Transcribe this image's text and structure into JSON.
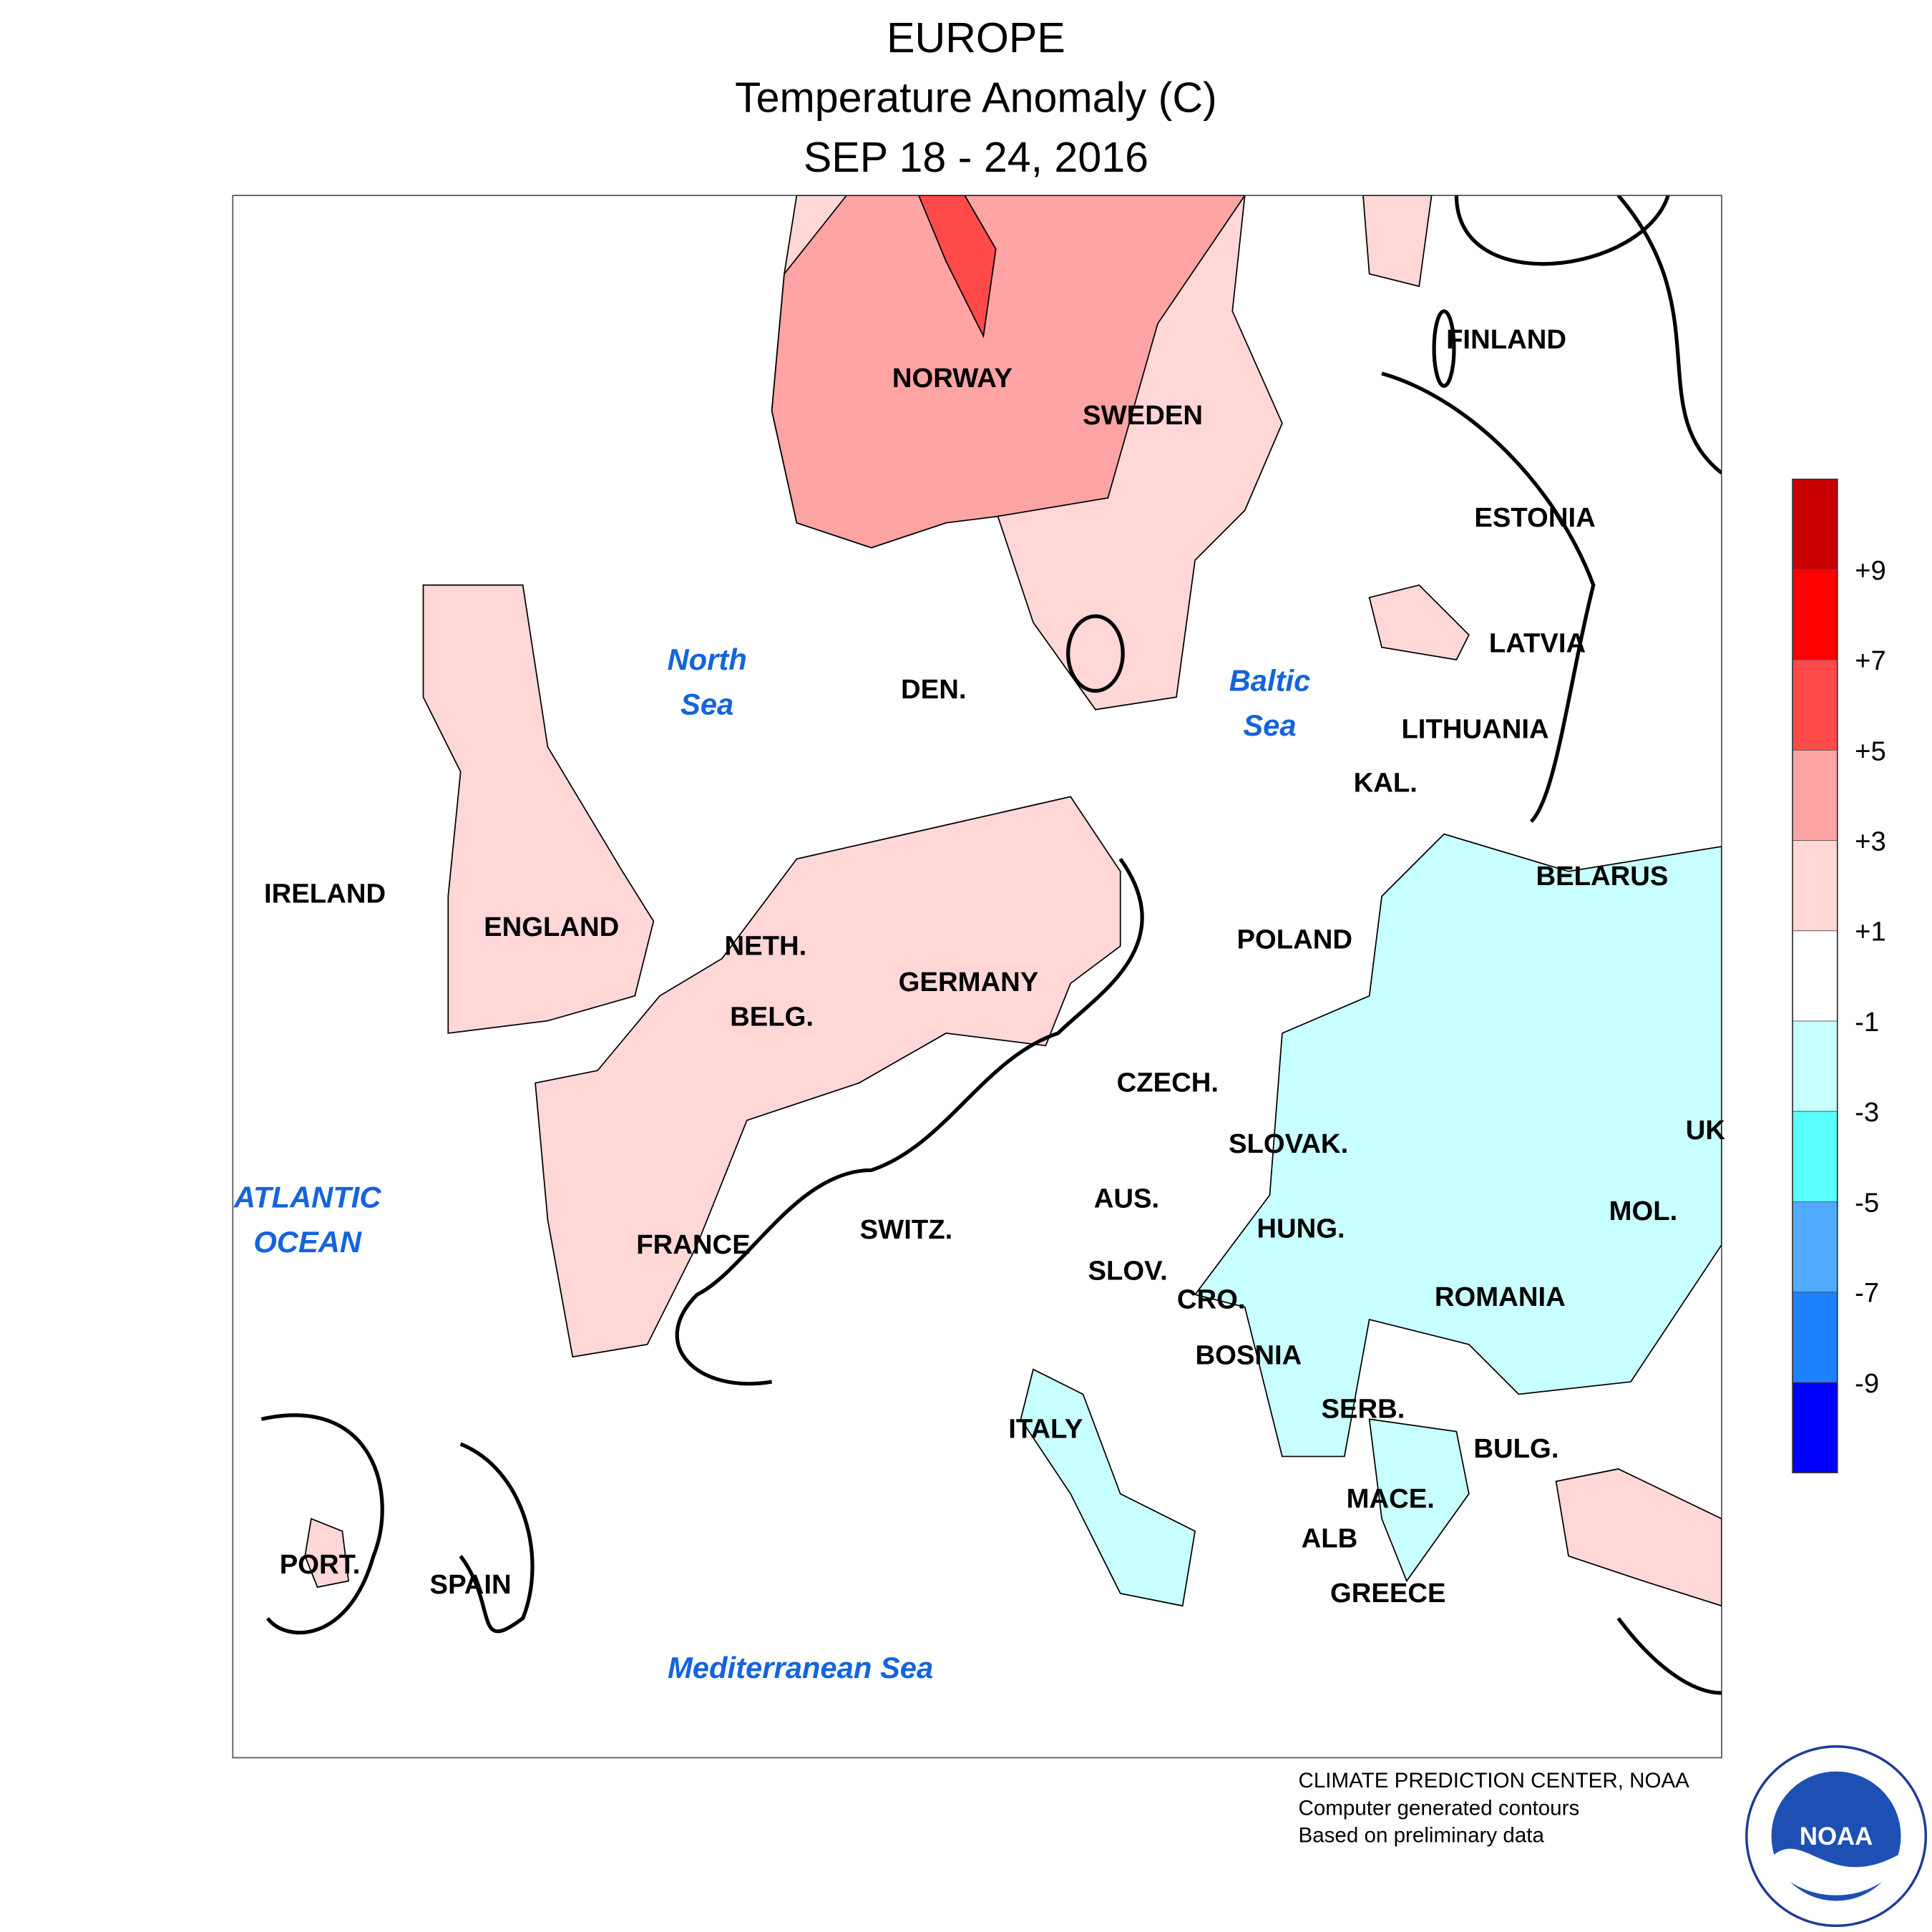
{
  "header": {
    "title": "EUROPE",
    "subtitle": "Temperature Anomaly (C)",
    "date": "SEP 18 - 24, 2016"
  },
  "map": {
    "countries": [
      "FINLAND",
      "NORWAY",
      "SWEDEN",
      "ESTONIA",
      "LATVIA",
      "DEN.",
      "LITHUANIA",
      "KAL.",
      "BELARUS",
      "IRELAND",
      "ENGLAND",
      "NETH.",
      "POLAND",
      "GERMANY",
      "BELG.",
      "CZECH.",
      "UK",
      "SLOVAK.",
      "AUS.",
      "SWITZ.",
      "HUNG.",
      "MOL.",
      "FRANCE",
      "SLOV.",
      "CRO.",
      "ROMANIA",
      "BOSNIA",
      "SERB.",
      "ITALY",
      "BULG.",
      "MACE.",
      "ALB",
      "PORT.",
      "SPAIN",
      "GREECE"
    ],
    "seas": [
      [
        "North",
        "Sea"
      ],
      [
        "Baltic",
        "Sea"
      ],
      [
        "ATLANTIC",
        "OCEAN"
      ],
      [
        "Mediterranean Sea"
      ]
    ]
  },
  "legend": {
    "colors": [
      "#c80000",
      "#ff0000",
      "#ff4a4a",
      "#ffa4a4",
      "#ffd7d7",
      "#ffffff",
      "#c8ffff",
      "#5affff",
      "#50aaff",
      "#1e82ff",
      "#0000ff"
    ],
    "labels": [
      "+9",
      "+7",
      "+5",
      "+3",
      "+1",
      "-1",
      "-3",
      "-5",
      "-7",
      "-9"
    ]
  },
  "footer": {
    "lines": [
      "CLIMATE PREDICTION CENTER, NOAA",
      "Computer generated contours",
      "Based on preliminary data"
    ],
    "logo": "NOAA"
  }
}
